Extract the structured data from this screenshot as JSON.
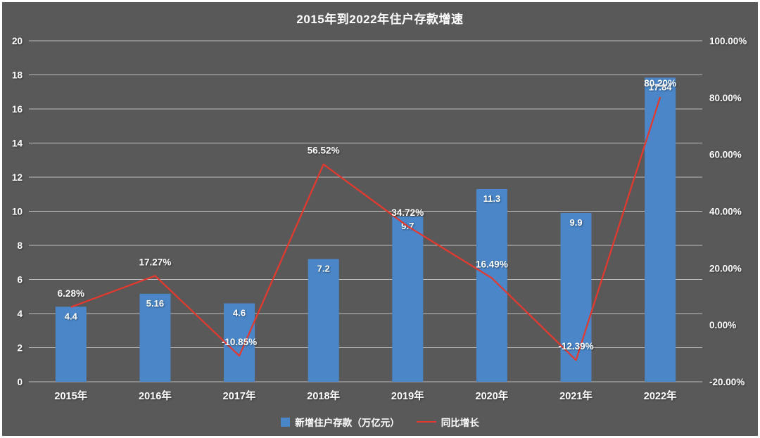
{
  "chart_data": {
    "type": "bar",
    "combo": true,
    "title": "2015年到2022年住户存款增速",
    "categories": [
      "2015年",
      "2016年",
      "2017年",
      "2018年",
      "2019年",
      "2020年",
      "2021年",
      "2022年"
    ],
    "series": [
      {
        "name": "新增住户存款（万亿元）",
        "type": "bar",
        "axis": "left",
        "color": "#4a86c8",
        "values": [
          4.4,
          5.16,
          4.6,
          7.2,
          9.7,
          11.3,
          9.9,
          17.84
        ],
        "labels": [
          "4.4",
          "5.16",
          "4.6",
          "7.2",
          "9.7",
          "11.3",
          "9.9",
          "17.84"
        ]
      },
      {
        "name": "同比增长",
        "type": "line",
        "axis": "right",
        "color": "#e3392e",
        "values": [
          6.28,
          17.27,
          -10.85,
          56.52,
          34.72,
          16.49,
          -12.39,
          80.2
        ],
        "labels": [
          "6.28%",
          "17.27%",
          "-10.85%",
          "56.52%",
          "34.72%",
          "16.49%",
          "-12.39%",
          "80.20%"
        ]
      }
    ],
    "left_axis": {
      "min": 0,
      "max": 20,
      "step": 2,
      "ticks": [
        "0",
        "2",
        "4",
        "6",
        "8",
        "10",
        "12",
        "14",
        "16",
        "18",
        "20"
      ]
    },
    "right_axis": {
      "min": -20,
      "max": 100,
      "step": 20,
      "ticks": [
        "-20.00%",
        "0.00%",
        "20.00%",
        "40.00%",
        "60.00%",
        "80.00%",
        "100.00%"
      ]
    },
    "grid": true,
    "legend_position": "bottom",
    "background_color": "#595959",
    "grid_color": "#cfcfcf",
    "text_color": "#ffffff"
  }
}
